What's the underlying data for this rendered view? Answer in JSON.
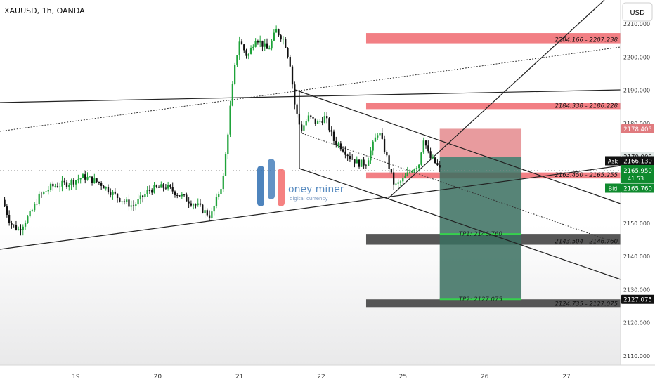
{
  "chart_data": {
    "type": "candlestick",
    "symbol_title": "XAUUSD, 1h, OANDA",
    "currency_button": "USD",
    "y_ticks": [
      2110,
      2120,
      2130,
      2140,
      2150,
      2160,
      2170,
      2180,
      2190,
      2200,
      2210
    ],
    "x_labels": [
      {
        "label": "19",
        "day": 19
      },
      {
        "label": "20",
        "day": 20
      },
      {
        "label": "21",
        "day": 21
      },
      {
        "label": "22",
        "day": 22
      },
      {
        "label": "25",
        "day": 23
      },
      {
        "label": "26",
        "day": 24
      },
      {
        "label": "27",
        "day": 25
      }
    ],
    "ylim": [
      2105,
      2215
    ],
    "xlim": [
      18.1,
      25.6
    ],
    "price_path": [
      [
        18.1,
        2157
      ],
      [
        18.2,
        2150
      ],
      [
        18.3,
        2148
      ],
      [
        18.45,
        2153
      ],
      [
        18.55,
        2158
      ],
      [
        18.7,
        2161
      ],
      [
        18.9,
        2162
      ],
      [
        19.1,
        2164
      ],
      [
        19.3,
        2162
      ],
      [
        19.5,
        2158
      ],
      [
        19.7,
        2155
      ],
      [
        19.9,
        2160
      ],
      [
        20.1,
        2161
      ],
      [
        20.3,
        2158
      ],
      [
        20.5,
        2155
      ],
      [
        20.65,
        2152
      ],
      [
        20.72,
        2157
      ],
      [
        20.8,
        2163
      ],
      [
        20.85,
        2175
      ],
      [
        20.9,
        2188
      ],
      [
        20.95,
        2198
      ],
      [
        21.0,
        2205
      ],
      [
        21.1,
        2200
      ],
      [
        21.2,
        2206
      ],
      [
        21.35,
        2202
      ],
      [
        21.45,
        2208
      ],
      [
        21.55,
        2205
      ],
      [
        21.62,
        2198
      ],
      [
        21.68,
        2185
      ],
      [
        21.75,
        2178
      ],
      [
        21.85,
        2182
      ],
      [
        21.95,
        2180
      ],
      [
        22.05,
        2182
      ],
      [
        22.15,
        2175
      ],
      [
        22.25,
        2173
      ],
      [
        22.35,
        2170
      ],
      [
        22.45,
        2168
      ],
      [
        22.55,
        2168
      ],
      [
        22.7,
        2178
      ],
      [
        22.8,
        2170
      ],
      [
        22.85,
        2165
      ],
      [
        22.9,
        2161
      ],
      [
        23.0,
        2163
      ],
      [
        23.1,
        2166
      ],
      [
        23.2,
        2168
      ],
      [
        23.25,
        2176
      ],
      [
        23.32,
        2170
      ],
      [
        23.4,
        2168
      ],
      [
        23.45,
        2166.13
      ]
    ],
    "current": {
      "ask": "2166.130",
      "bid": "2165.760",
      "last": "2165.950",
      "countdown": "41:53",
      "ask_label": "Ask",
      "bid_label": "Bid"
    },
    "zones": [
      {
        "label": "2204.166 - 2207.238",
        "low": 2204.166,
        "high": 2207.238,
        "color": "#f0686e",
        "x_from": 22.55
      },
      {
        "label": "2184.338 - 2186.228",
        "low": 2184.338,
        "high": 2186.228,
        "color": "#f0686e",
        "x_from": 22.55
      },
      {
        "label": "2163.450 - 2165.255",
        "low": 2163.45,
        "high": 2165.255,
        "color": "#f0686e",
        "x_from": 22.55
      },
      {
        "label": "2143.504 - 2146.760",
        "low": 2143.504,
        "high": 2146.76,
        "color": "#3a3a3a",
        "x_from": 22.55
      },
      {
        "label": "2124.735 - 2127.075",
        "low": 2124.735,
        "high": 2127.075,
        "color": "#3a3a3a",
        "x_from": 22.55
      }
    ],
    "position": {
      "x_from": 23.45,
      "x_to": 24.45,
      "entry": 2170,
      "stop": 2178.405,
      "tp1": 2146.76,
      "tp2": 2127.075,
      "tp1_label": "TP1: 2146.760",
      "tp2_label": "TP2: 2127.075",
      "stop_axis_label": "2178.405",
      "tp2_axis_label": "2127.075",
      "entry_axis_label": "2170.000"
    },
    "colors": {
      "up": "#26a69a",
      "down": "#ef5350",
      "candle_up": "#1fa33a",
      "candle_down": "#111111",
      "ask": "#111111",
      "bid": "#0f8a2e",
      "profit": "#3a6f5f",
      "loss": "#e07a7e"
    },
    "watermark": {
      "text": "oney miner",
      "subtext": "digital currency"
    }
  }
}
